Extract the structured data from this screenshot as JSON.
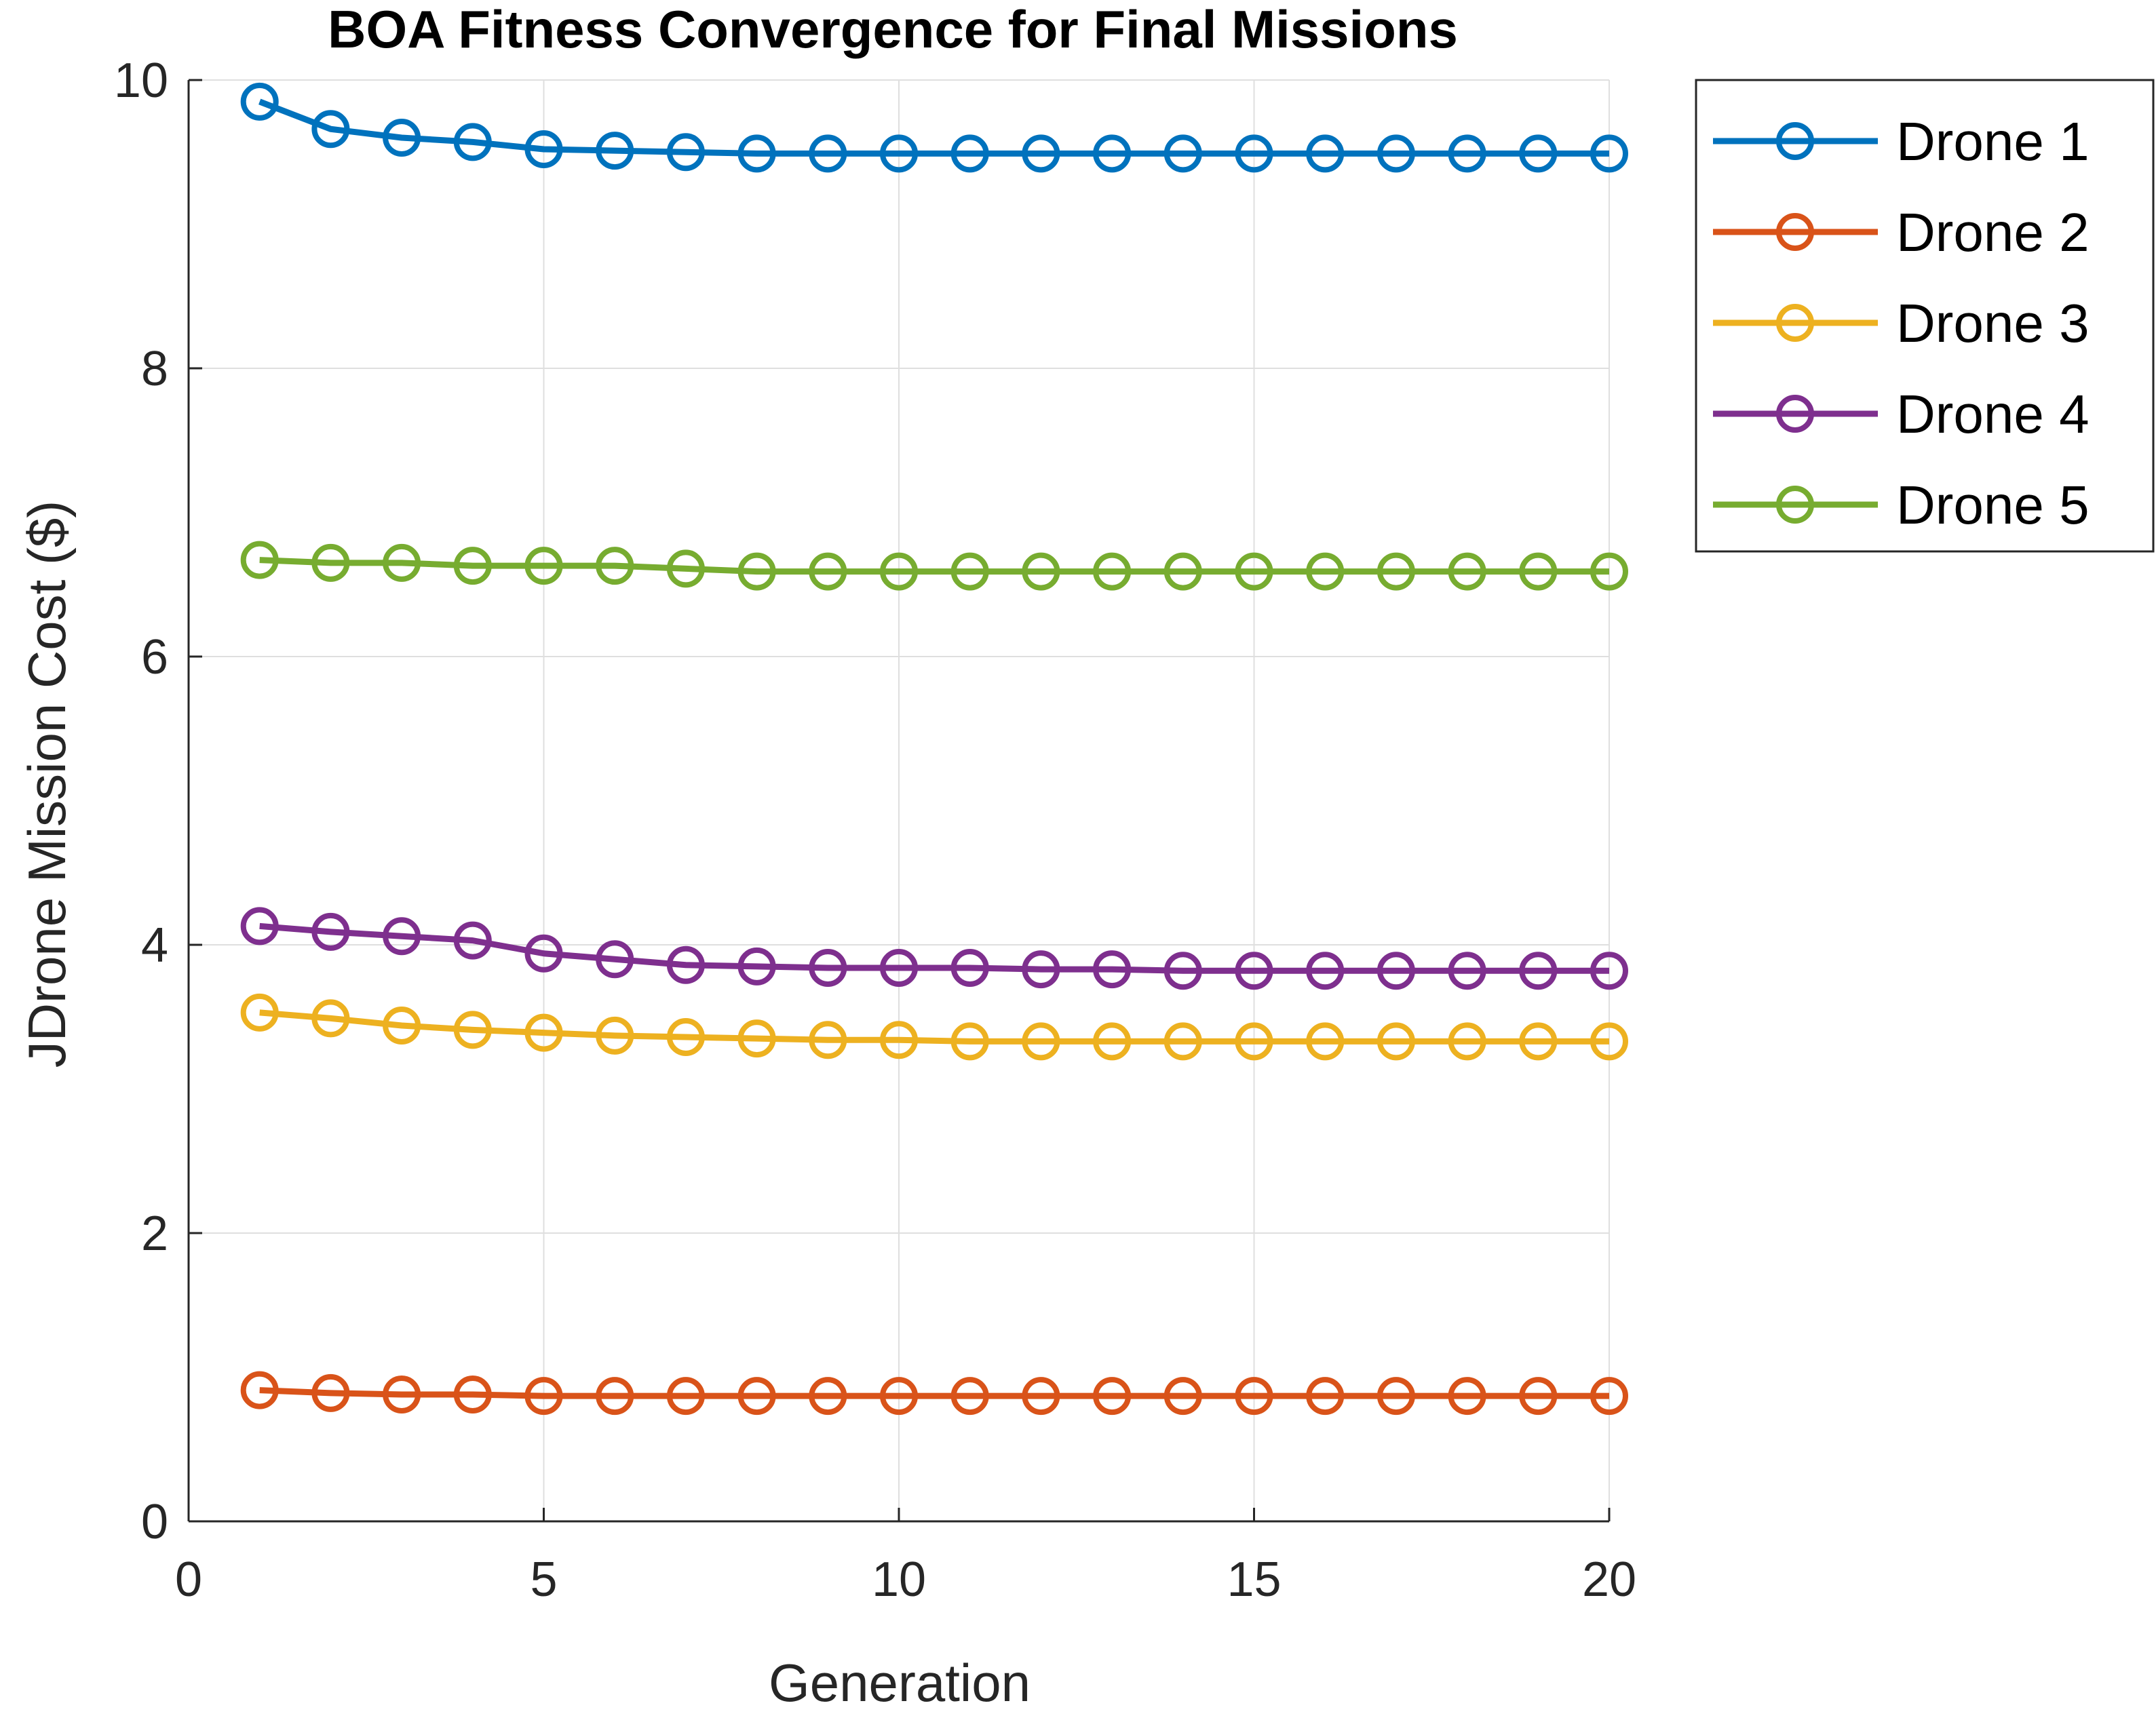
{
  "chart_data": {
    "type": "line",
    "title": "BOA Fitness Convergence for Final Missions",
    "xlabel": "Generation",
    "ylabel": "JDrone Mission Cost ($)",
    "xlim": [
      0,
      20
    ],
    "ylim": [
      0,
      10
    ],
    "xticks": [
      0,
      5,
      10,
      15,
      20
    ],
    "yticks": [
      0,
      2,
      4,
      6,
      8,
      10
    ],
    "grid": true,
    "legend_position": "outside-top-right",
    "marker": "circle-open",
    "x": [
      1,
      2,
      3,
      4,
      5,
      6,
      7,
      8,
      9,
      10,
      11,
      12,
      13,
      14,
      15,
      16,
      17,
      18,
      19,
      20
    ],
    "series": [
      {
        "name": "Drone 1",
        "color": "#0072BD",
        "values": [
          9.85,
          9.66,
          9.6,
          9.57,
          9.52,
          9.51,
          9.5,
          9.49,
          9.49,
          9.49,
          9.49,
          9.49,
          9.49,
          9.49,
          9.49,
          9.49,
          9.49,
          9.49,
          9.49,
          9.49
        ]
      },
      {
        "name": "Drone 2",
        "color": "#D95319",
        "values": [
          0.91,
          0.89,
          0.88,
          0.88,
          0.87,
          0.87,
          0.87,
          0.87,
          0.87,
          0.87,
          0.87,
          0.87,
          0.87,
          0.87,
          0.87,
          0.87,
          0.87,
          0.87,
          0.87,
          0.87
        ]
      },
      {
        "name": "Drone 3",
        "color": "#EDB120",
        "values": [
          3.53,
          3.49,
          3.44,
          3.41,
          3.39,
          3.37,
          3.36,
          3.35,
          3.34,
          3.34,
          3.33,
          3.33,
          3.33,
          3.33,
          3.33,
          3.33,
          3.33,
          3.33,
          3.33,
          3.33
        ]
      },
      {
        "name": "Drone 4",
        "color": "#7E2F8E",
        "values": [
          4.13,
          4.09,
          4.06,
          4.03,
          3.94,
          3.9,
          3.86,
          3.85,
          3.84,
          3.84,
          3.84,
          3.83,
          3.83,
          3.82,
          3.82,
          3.82,
          3.82,
          3.82,
          3.82,
          3.82
        ]
      },
      {
        "name": "Drone 5",
        "color": "#77AC30",
        "values": [
          6.67,
          6.65,
          6.65,
          6.63,
          6.63,
          6.63,
          6.61,
          6.59,
          6.59,
          6.59,
          6.59,
          6.59,
          6.59,
          6.59,
          6.59,
          6.59,
          6.59,
          6.59,
          6.59,
          6.59
        ]
      }
    ]
  }
}
